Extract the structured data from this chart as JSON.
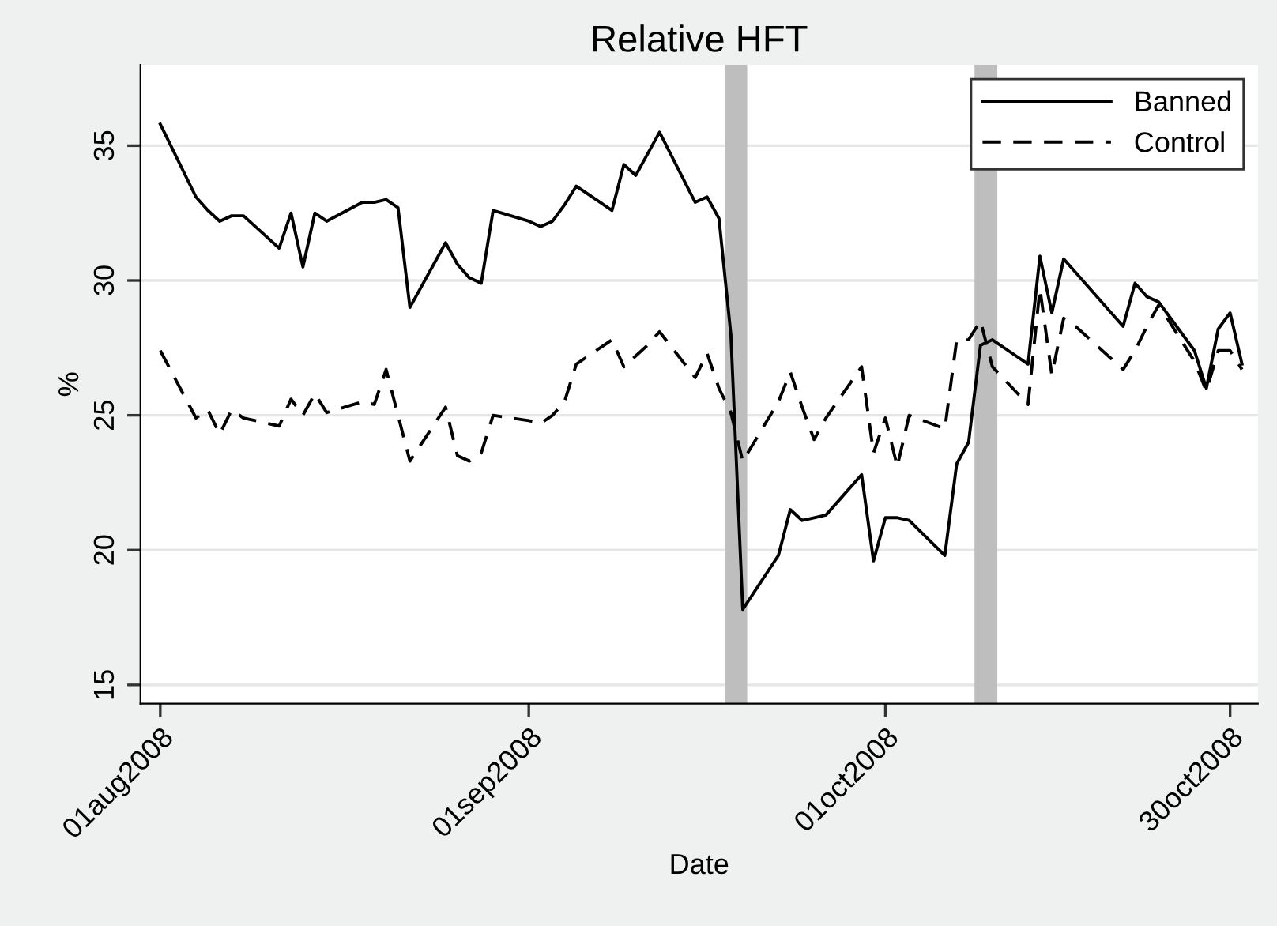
{
  "chart_data": {
    "type": "line",
    "title": "Relative HFT",
    "xlabel": "Date",
    "ylabel": "%",
    "x": [
      "2008-08-01",
      "2008-08-04",
      "2008-08-05",
      "2008-08-06",
      "2008-08-07",
      "2008-08-08",
      "2008-08-11",
      "2008-08-12",
      "2008-08-13",
      "2008-08-14",
      "2008-08-15",
      "2008-08-18",
      "2008-08-19",
      "2008-08-20",
      "2008-08-21",
      "2008-08-22",
      "2008-08-25",
      "2008-08-26",
      "2008-08-27",
      "2008-08-28",
      "2008-08-29",
      "2008-09-01",
      "2008-09-02",
      "2008-09-03",
      "2008-09-04",
      "2008-09-05",
      "2008-09-08",
      "2008-09-09",
      "2008-09-10",
      "2008-09-11",
      "2008-09-12",
      "2008-09-15",
      "2008-09-16",
      "2008-09-17",
      "2008-09-18",
      "2008-09-19",
      "2008-09-22",
      "2008-09-23",
      "2008-09-24",
      "2008-09-25",
      "2008-09-26",
      "2008-09-29",
      "2008-09-30",
      "2008-10-01",
      "2008-10-02",
      "2008-10-03",
      "2008-10-06",
      "2008-10-07",
      "2008-10-08",
      "2008-10-09",
      "2008-10-10",
      "2008-10-13",
      "2008-10-14",
      "2008-10-15",
      "2008-10-16",
      "2008-10-17",
      "2008-10-20",
      "2008-10-21",
      "2008-10-22",
      "2008-10-23",
      "2008-10-24",
      "2008-10-27",
      "2008-10-28",
      "2008-10-29",
      "2008-10-30",
      "2008-10-31"
    ],
    "series": [
      {
        "name": "Banned",
        "color": "#000000",
        "line_style": "solid",
        "values": [
          35.8,
          33.1,
          32.6,
          32.2,
          32.4,
          32.4,
          31.2,
          32.5,
          30.5,
          32.5,
          32.2,
          32.9,
          32.9,
          33.0,
          32.7,
          29.0,
          31.4,
          30.6,
          30.1,
          29.9,
          32.6,
          32.2,
          32.0,
          32.2,
          32.8,
          33.5,
          32.6,
          34.3,
          33.9,
          34.7,
          35.5,
          32.9,
          33.1,
          32.3,
          28.0,
          17.8,
          19.8,
          21.5,
          21.1,
          21.2,
          21.3,
          22.8,
          19.6,
          21.2,
          21.2,
          21.1,
          19.8,
          23.2,
          24.0,
          27.6,
          27.8,
          26.9,
          30.9,
          28.8,
          30.8,
          30.3,
          28.8,
          28.3,
          29.9,
          29.4,
          29.2,
          27.4,
          26.0,
          28.2,
          28.8,
          26.9
        ]
      },
      {
        "name": "Control",
        "color": "#000000",
        "line_style": "dashed",
        "values": [
          27.4,
          24.9,
          25.2,
          24.3,
          25.2,
          24.9,
          24.6,
          25.6,
          25.0,
          25.8,
          25.1,
          25.5,
          25.4,
          26.7,
          25.0,
          23.3,
          25.3,
          23.5,
          23.3,
          23.6,
          25.0,
          24.8,
          24.7,
          25.0,
          25.5,
          26.9,
          27.8,
          26.8,
          27.2,
          27.6,
          28.1,
          26.4,
          27.3,
          26.0,
          25.1,
          23.3,
          25.5,
          26.6,
          25.3,
          24.1,
          24.9,
          26.8,
          23.6,
          24.9,
          23.1,
          25.0,
          24.5,
          27.8,
          27.8,
          28.5,
          26.8,
          25.4,
          29.7,
          26.5,
          28.6,
          28.3,
          27.1,
          26.7,
          27.4,
          28.3,
          29.1,
          27.0,
          25.9,
          27.4,
          27.4,
          26.7
        ]
      }
    ],
    "bands": [
      {
        "axis": "x",
        "from": "2008-09-17T12:00",
        "to": "2008-09-19T09:00",
        "color": "#bebebe"
      },
      {
        "axis": "x",
        "from": "2008-10-08T12:00",
        "to": "2008-10-10T10:00",
        "color": "#bebebe"
      }
    ],
    "xlim": [
      "2008-07-30T08:00",
      "2008-11-01T08:00"
    ],
    "xticks": [
      {
        "value": "2008-08-01",
        "label": "01aug2008"
      },
      {
        "value": "2008-09-01",
        "label": "01sep2008"
      },
      {
        "value": "2008-10-01",
        "label": "01oct2008"
      },
      {
        "value": "2008-10-30",
        "label": "30oct2008"
      }
    ],
    "ylim": [
      14.3,
      38.0
    ],
    "yticks": [
      15,
      20,
      25,
      30,
      35
    ],
    "grid": "y",
    "legend": "top right",
    "marker": "none"
  }
}
